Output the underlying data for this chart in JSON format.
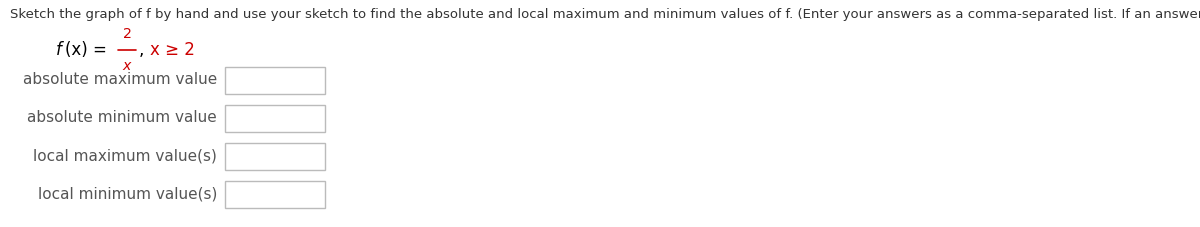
{
  "title_text": "Sketch the graph of f by hand and use your sketch to find the absolute and local maximum and minimum values of f. (Enter your answers as a comma-separated list. If an answer does not exist, enter DNE.)",
  "title_fontsize": 9.5,
  "title_color": "#333333",
  "func_fontsize": 12,
  "func_color": "#000000",
  "func_red_color": "#cc0000",
  "func_numerator": "2",
  "func_denominator": "x",
  "func_constraint": "x ≥ 2",
  "rows": [
    {
      "label": "absolute maximum value"
    },
    {
      "label": "absolute minimum value"
    },
    {
      "label": "local maximum value(s)"
    },
    {
      "label": "local minimum value(s)"
    }
  ],
  "label_fontsize": 11,
  "label_color": "#555555",
  "bg_color": "#ffffff",
  "box_edge_color": "#bbbbbb",
  "box_face_color": "#ffffff",
  "fig_width": 12.0,
  "fig_height": 2.27,
  "dpi": 100
}
